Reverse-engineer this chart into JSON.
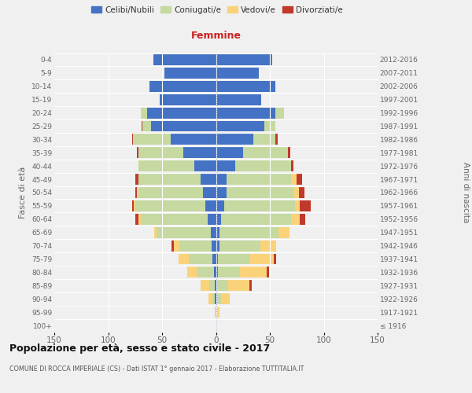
{
  "age_groups": [
    "0-4",
    "5-9",
    "10-14",
    "15-19",
    "20-24",
    "25-29",
    "30-34",
    "35-39",
    "40-44",
    "45-49",
    "50-54",
    "55-59",
    "60-64",
    "65-69",
    "70-74",
    "75-79",
    "80-84",
    "85-89",
    "90-94",
    "95-99",
    "100+"
  ],
  "birth_years": [
    "2012-2016",
    "2007-2011",
    "2002-2006",
    "1997-2001",
    "1992-1996",
    "1987-1991",
    "1982-1986",
    "1977-1981",
    "1972-1976",
    "1967-1971",
    "1962-1966",
    "1957-1961",
    "1952-1956",
    "1947-1951",
    "1942-1946",
    "1937-1941",
    "1932-1936",
    "1927-1931",
    "1922-1926",
    "1917-1921",
    "≤ 1916"
  ],
  "male_celibi": [
    58,
    48,
    62,
    52,
    64,
    60,
    42,
    30,
    20,
    14,
    12,
    10,
    8,
    5,
    4,
    3,
    2,
    1,
    1,
    0,
    0
  ],
  "male_coniugati": [
    0,
    0,
    0,
    0,
    5,
    8,
    35,
    42,
    52,
    58,
    60,
    65,
    62,
    50,
    30,
    22,
    15,
    5,
    2,
    0,
    0
  ],
  "male_vedovi": [
    0,
    0,
    0,
    0,
    1,
    0,
    0,
    0,
    0,
    0,
    1,
    1,
    2,
    2,
    5,
    10,
    10,
    8,
    4,
    1,
    0
  ],
  "male_divorziati": [
    0,
    0,
    0,
    0,
    0,
    1,
    1,
    1,
    0,
    3,
    2,
    2,
    3,
    0,
    2,
    0,
    0,
    0,
    0,
    0,
    0
  ],
  "female_celibi": [
    52,
    40,
    55,
    42,
    55,
    45,
    35,
    25,
    18,
    10,
    10,
    8,
    5,
    3,
    3,
    2,
    2,
    1,
    0,
    0,
    0
  ],
  "female_coniugati": [
    0,
    0,
    0,
    0,
    8,
    10,
    20,
    42,
    52,
    60,
    62,
    65,
    65,
    55,
    38,
    30,
    20,
    10,
    5,
    1,
    0
  ],
  "female_vedovi": [
    0,
    0,
    0,
    0,
    0,
    0,
    0,
    0,
    0,
    5,
    5,
    5,
    8,
    10,
    15,
    22,
    25,
    20,
    8,
    2,
    1
  ],
  "female_divorziati": [
    0,
    0,
    0,
    0,
    0,
    0,
    2,
    2,
    2,
    5,
    5,
    10,
    5,
    0,
    0,
    2,
    2,
    2,
    0,
    0,
    0
  ],
  "color_celibi": "#4472c4",
  "color_coniugati": "#c5d9a0",
  "color_vedovi": "#fad27a",
  "color_divorziati": "#c0392b",
  "title_main": "Popolazione per età, sesso e stato civile - 2017",
  "title_sub": "COMUNE DI ROCCA IMPERIALE (CS) - Dati ISTAT 1° gennaio 2017 - Elaborazione TUTTITALIA.IT",
  "xlim": 150,
  "bg_color": "#f0f0f0",
  "bar_height": 0.82
}
